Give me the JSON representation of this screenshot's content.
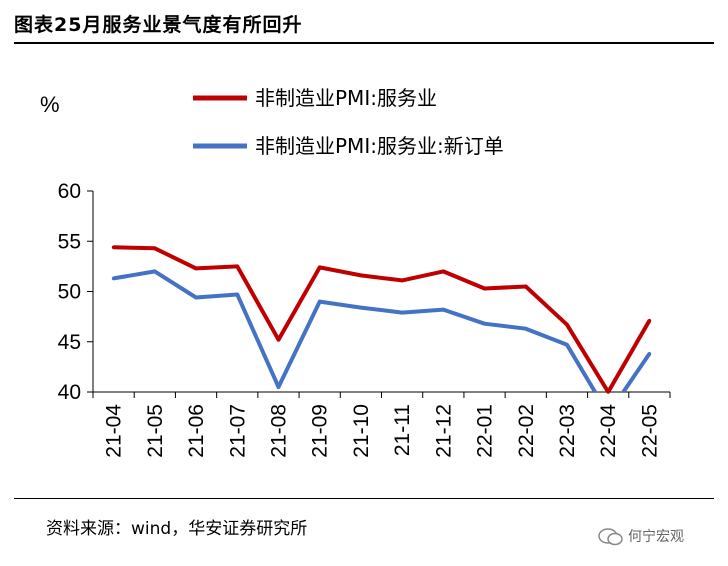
{
  "header": {
    "title": "图表25月服务业景气度有所回升"
  },
  "footer": {
    "source": "资料来源：wind，华安证券研究所",
    "watermark": "何宁宏观"
  },
  "chart_data": {
    "type": "line",
    "title": "",
    "xlabel": "",
    "ylabel": "%",
    "ylim": [
      40,
      60
    ],
    "yticks": [
      40,
      45,
      50,
      55,
      60
    ],
    "grid": false,
    "legend_position": "top",
    "categories": [
      "21-04",
      "21-05",
      "21-06",
      "21-07",
      "21-08",
      "21-09",
      "21-10",
      "21-11",
      "21-12",
      "22-01",
      "22-02",
      "22-03",
      "22-04",
      "22-05"
    ],
    "series": [
      {
        "name": "非制造业PMI:服务业",
        "color": "#c00000",
        "values": [
          54.4,
          54.3,
          52.3,
          52.5,
          45.2,
          52.4,
          51.6,
          51.1,
          52.0,
          50.3,
          50.5,
          46.7,
          40.0,
          47.1
        ]
      },
      {
        "name": "非制造业PMI:服务业:新订单",
        "color": "#4472c4",
        "values": [
          51.3,
          52.0,
          49.4,
          49.7,
          40.5,
          49.0,
          48.4,
          47.9,
          48.2,
          46.8,
          46.3,
          44.7,
          37.8,
          43.8
        ]
      }
    ]
  }
}
